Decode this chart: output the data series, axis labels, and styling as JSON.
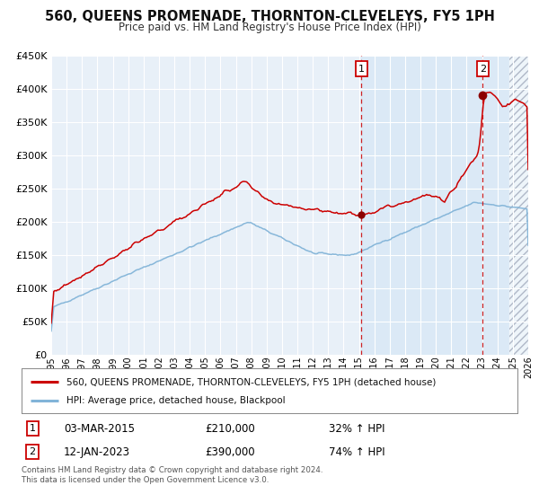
{
  "title": "560, QUEENS PROMENADE, THORNTON-CLEVELEYS, FY5 1PH",
  "subtitle": "Price paid vs. HM Land Registry's House Price Index (HPI)",
  "ylim": [
    0,
    450000
  ],
  "yticks": [
    0,
    50000,
    100000,
    150000,
    200000,
    250000,
    300000,
    350000,
    400000,
    450000
  ],
  "xlim_start": 1995.0,
  "xlim_end": 2026.0,
  "xticks": [
    1995,
    1996,
    1997,
    1998,
    1999,
    2000,
    2001,
    2002,
    2003,
    2004,
    2005,
    2006,
    2007,
    2008,
    2009,
    2010,
    2011,
    2012,
    2013,
    2014,
    2015,
    2016,
    2017,
    2018,
    2019,
    2020,
    2021,
    2022,
    2023,
    2024,
    2025,
    2026
  ],
  "line1_color": "#cc0000",
  "line2_color": "#82b4d8",
  "bg_color": "#e8f0f8",
  "grid_color": "#ffffff",
  "point1_x": 2015.17,
  "point1_y": 210000,
  "point2_x": 2023.04,
  "point2_y": 390000,
  "vline1_x": 2015.17,
  "vline2_x": 2023.04,
  "hatch_start": 2024.75,
  "shade_start": 2015.17,
  "legend_line1": "560, QUEENS PROMENADE, THORNTON-CLEVELEYS, FY5 1PH (detached house)",
  "legend_line2": "HPI: Average price, detached house, Blackpool",
  "table_row1_num": "1",
  "table_row1_date": "03-MAR-2015",
  "table_row1_price": "£210,000",
  "table_row1_hpi": "32% ↑ HPI",
  "table_row2_num": "2",
  "table_row2_date": "12-JAN-2023",
  "table_row2_price": "£390,000",
  "table_row2_hpi": "74% ↑ HPI",
  "footnote": "Contains HM Land Registry data © Crown copyright and database right 2024.\nThis data is licensed under the Open Government Licence v3.0."
}
